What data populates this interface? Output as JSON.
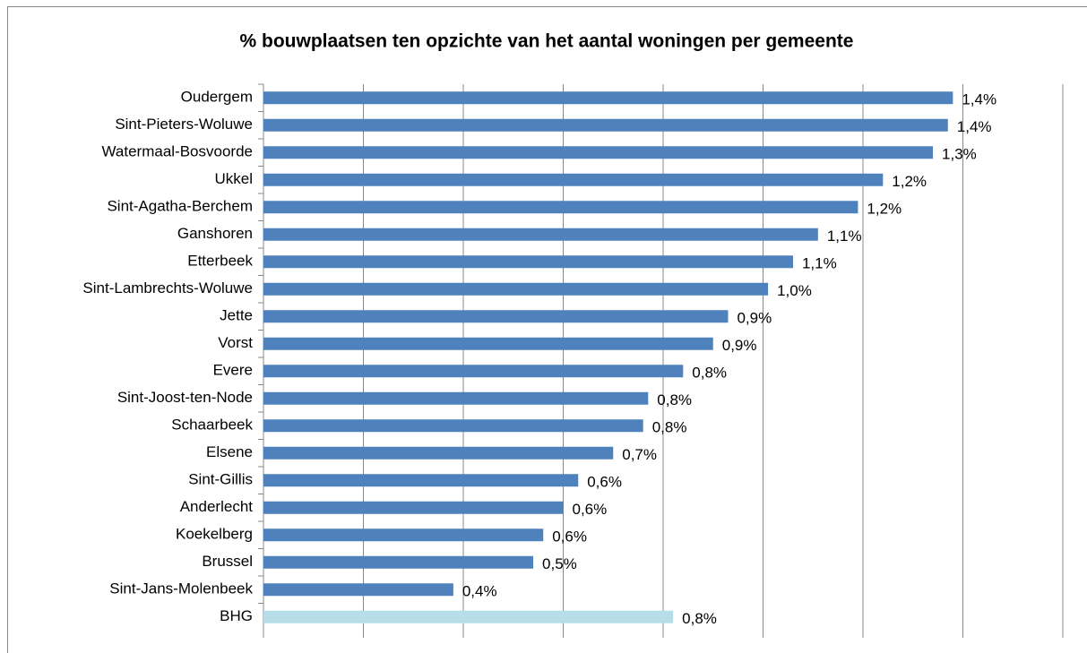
{
  "chart_data": {
    "type": "bar",
    "orientation": "horizontal",
    "title": "% bouwplaatsen ten opzichte van het aantal woningen per gemeente",
    "categories": [
      "Oudergem",
      "Sint-Pieters-Woluwe",
      "Watermaal-Bosvoorde",
      "Ukkel",
      "Sint-Agatha-Berchem",
      "Ganshoren",
      "Etterbeek",
      "Sint-Lambrechts-Woluwe",
      "Jette",
      "Vorst",
      "Evere",
      "Sint-Joost-ten-Node",
      "Schaarbeek",
      "Elsene",
      "Sint-Gillis",
      "Anderlecht",
      "Koekelberg",
      "Brussel",
      "Sint-Jans-Molenbeek",
      "BHG"
    ],
    "values": [
      1.38,
      1.37,
      1.34,
      1.24,
      1.19,
      1.11,
      1.06,
      1.01,
      0.93,
      0.9,
      0.84,
      0.77,
      0.76,
      0.7,
      0.63,
      0.6,
      0.56,
      0.54,
      0.38,
      0.82
    ],
    "value_labels": [
      "1,4%",
      "1,4%",
      "1,3%",
      "1,2%",
      "1,2%",
      "1,1%",
      "1,1%",
      "1,0%",
      "0,9%",
      "0,9%",
      "0,8%",
      "0,8%",
      "0,8%",
      "0,7%",
      "0,6%",
      "0,6%",
      "0,6%",
      "0,5%",
      "0,4%",
      "0,8%"
    ],
    "colors": [
      "#4f81bd",
      "#4f81bd",
      "#4f81bd",
      "#4f81bd",
      "#4f81bd",
      "#4f81bd",
      "#4f81bd",
      "#4f81bd",
      "#4f81bd",
      "#4f81bd",
      "#4f81bd",
      "#4f81bd",
      "#4f81bd",
      "#4f81bd",
      "#4f81bd",
      "#4f81bd",
      "#4f81bd",
      "#4f81bd",
      "#4f81bd",
      "#b7dde8"
    ],
    "xlim": [
      0,
      1.6
    ],
    "xticks": [
      0,
      0.2,
      0.4,
      0.6,
      0.8,
      1.0,
      1.2,
      1.4,
      1.6
    ],
    "grid": true
  }
}
